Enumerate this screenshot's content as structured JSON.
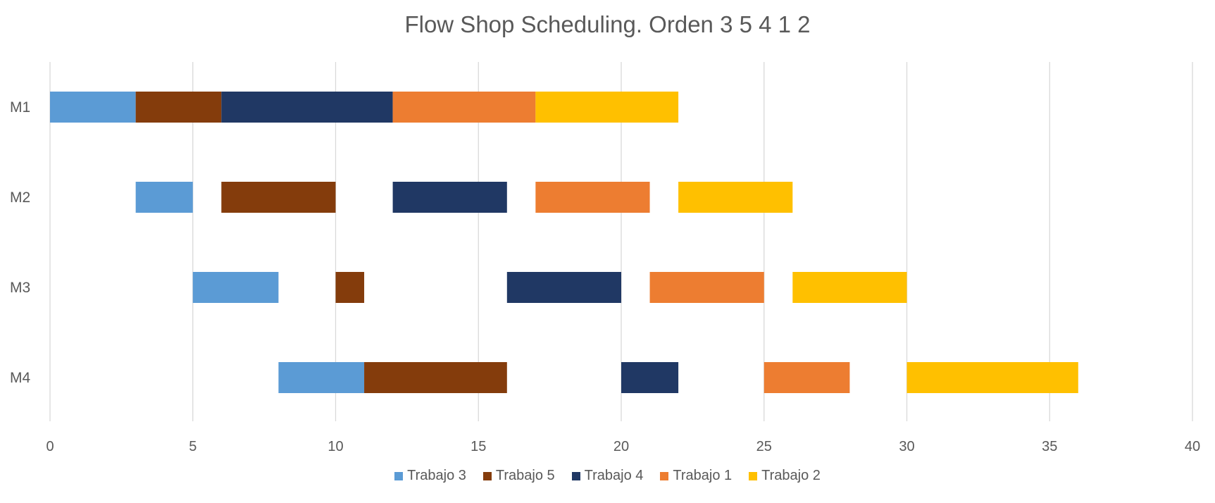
{
  "chart_data": {
    "type": "bar",
    "orientation": "horizontal-gantt",
    "title": "Flow Shop Scheduling. Orden 3 5 4 1 2",
    "categories": [
      "M1",
      "M2",
      "M3",
      "M4"
    ],
    "xlim": [
      0,
      40
    ],
    "xticks": [
      0,
      5,
      10,
      15,
      20,
      25,
      30,
      35,
      40
    ],
    "grid": "vertical",
    "legend_position": "bottom",
    "series": [
      {
        "name": "Trabajo 3",
        "color": "#5B9BD5",
        "segments": [
          {
            "machine": "M1",
            "start": 0,
            "end": 3
          },
          {
            "machine": "M2",
            "start": 3,
            "end": 5
          },
          {
            "machine": "M3",
            "start": 5,
            "end": 8
          },
          {
            "machine": "M4",
            "start": 8,
            "end": 11
          }
        ]
      },
      {
        "name": "Trabajo 5",
        "color": "#843C0C",
        "segments": [
          {
            "machine": "M1",
            "start": 3,
            "end": 6
          },
          {
            "machine": "M2",
            "start": 6,
            "end": 10
          },
          {
            "machine": "M3",
            "start": 10,
            "end": 11
          },
          {
            "machine": "M4",
            "start": 11,
            "end": 16
          }
        ]
      },
      {
        "name": "Trabajo 4",
        "color": "#203864",
        "segments": [
          {
            "machine": "M1",
            "start": 6,
            "end": 12
          },
          {
            "machine": "M2",
            "start": 12,
            "end": 16
          },
          {
            "machine": "M3",
            "start": 16,
            "end": 20
          },
          {
            "machine": "M4",
            "start": 20,
            "end": 22
          }
        ]
      },
      {
        "name": "Trabajo 1",
        "color": "#ED7D31",
        "segments": [
          {
            "machine": "M1",
            "start": 12,
            "end": 17
          },
          {
            "machine": "M2",
            "start": 17,
            "end": 21
          },
          {
            "machine": "M3",
            "start": 21,
            "end": 25
          },
          {
            "machine": "M4",
            "start": 25,
            "end": 28
          }
        ]
      },
      {
        "name": "Trabajo 2",
        "color": "#FFC000",
        "segments": [
          {
            "machine": "M1",
            "start": 17,
            "end": 22
          },
          {
            "machine": "M2",
            "start": 22,
            "end": 26
          },
          {
            "machine": "M3",
            "start": 26,
            "end": 30
          },
          {
            "machine": "M4",
            "start": 30,
            "end": 36
          }
        ]
      }
    ]
  }
}
